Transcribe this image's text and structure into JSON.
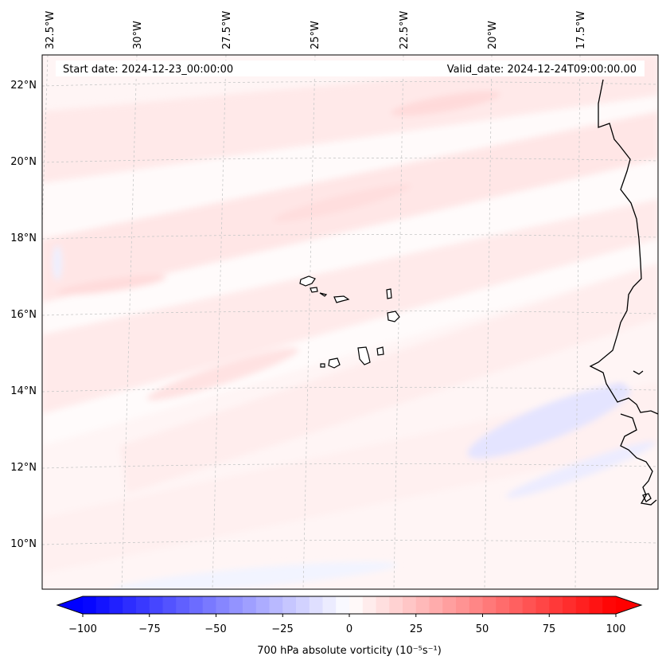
{
  "map": {
    "start_label": "Start date: 2024-12-23_00:00:00",
    "valid_label": "Valid_date: 2024-12-24T09:00:00.00",
    "lon_labels": [
      "32.5°W",
      "30°W",
      "27.5°W",
      "25°W",
      "22.5°W",
      "20°W",
      "17.5°W"
    ],
    "lat_labels": [
      "22°N",
      "20°N",
      "18°N",
      "16°N",
      "14°N",
      "12°N",
      "10°N"
    ],
    "coastline_color": "#000000",
    "gridline_color": "#c8c8c8"
  },
  "colorbar": {
    "label": "700 hPa absolute vorticity (10⁻⁵s⁻¹)",
    "tick_labels": [
      "−100",
      "−75",
      "−50",
      "−25",
      "0",
      "25",
      "50",
      "75",
      "100"
    ],
    "vmin": -100,
    "vmax": 100,
    "levels": 41,
    "cmap": "bwr"
  }
}
